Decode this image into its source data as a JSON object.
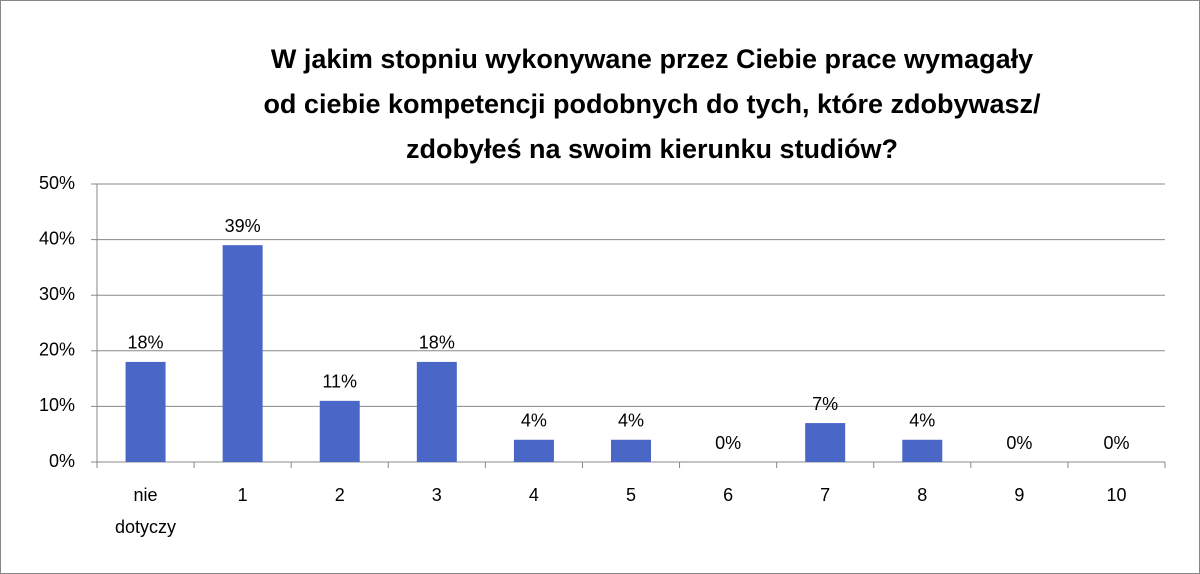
{
  "chart_data": {
    "type": "bar",
    "title": [
      "W jakim stopniu wykonywane przez Ciebie prace wymagały",
      "od ciebie kompetencji podobnych do tych, które zdobywasz/",
      "zdobyłeś na swoim kierunku studiów?"
    ],
    "categories": [
      "nie dotyczy",
      "1",
      "2",
      "3",
      "4",
      "5",
      "6",
      "7",
      "8",
      "9",
      "10"
    ],
    "values": [
      18,
      39,
      11,
      18,
      4,
      4,
      0,
      7,
      4,
      0,
      0
    ],
    "value_labels": [
      "18%",
      "39%",
      "11%",
      "18%",
      "4%",
      "4%",
      "0%",
      "7%",
      "4%",
      "0%",
      "0%"
    ],
    "color": "#4a67c8",
    "ylim": [
      0,
      50
    ],
    "yticks": [
      {
        "value": 0,
        "label": "0%"
      },
      {
        "value": 10,
        "label": "10%"
      },
      {
        "value": 20,
        "label": "20%"
      },
      {
        "value": 30,
        "label": "30%"
      },
      {
        "value": 40,
        "label": "40%"
      },
      {
        "value": 50,
        "label": "50%"
      }
    ],
    "grid": true
  }
}
